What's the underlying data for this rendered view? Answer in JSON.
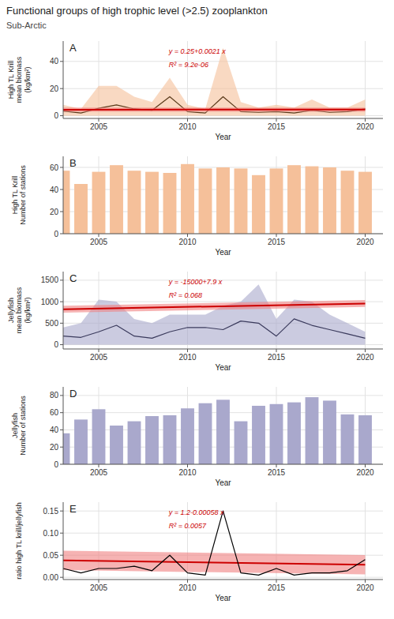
{
  "title": "Functional groups of high trophic level (>2.5) zooplankton",
  "subtitle": "Sub-Arctic",
  "chart_data": [
    {
      "type": "line",
      "x": [
        2003,
        2004,
        2005,
        2006,
        2007,
        2008,
        2009,
        2010,
        2011,
        2012,
        2013,
        2014,
        2015,
        2016,
        2017,
        2018,
        2019,
        2020
      ],
      "xlim": [
        2003,
        2021
      ],
      "ylim": [
        -2,
        55
      ],
      "xticks": [
        2005,
        2010,
        2015,
        2020
      ],
      "yticks": [
        0,
        20,
        40
      ],
      "grid": true,
      "xlabel": "Year",
      "ylabel": "High TL Krill\nmean biomass\n(kg/km²)",
      "annotations": [
        {
          "text": "A"
        },
        {
          "text": "y = 0.25+0.0021 x",
          "color": "#CC0000"
        },
        {
          "text": "R² = 9.2e-06",
          "color": "#CC0000"
        }
      ],
      "series": [
        {
          "type": "area",
          "color": "#F5C09A",
          "values": [
            8.0,
            5.0,
            22.0,
            22.0,
            14.0,
            10.0,
            28.0,
            8.0,
            5.0,
            50.0,
            10.0,
            6.0,
            8.0,
            6.0,
            12.0,
            6.0,
            6.0,
            12.0
          ],
          "lower": [
            0.0,
            0.0,
            0.0,
            0.0,
            0.0,
            0.0,
            0.0,
            0.0,
            0.0,
            0.0,
            0.0,
            0.0,
            0.0,
            0.0,
            0.0,
            0.0,
            0.0,
            0.0
          ]
        },
        {
          "type": "line",
          "color": "#5a3a1a",
          "values": [
            3.5,
            2.0,
            5.5,
            8.0,
            5.0,
            4.0,
            14.0,
            3.0,
            2.0,
            14.0,
            3.0,
            2.5,
            3.0,
            2.0,
            4.0,
            2.5,
            3.0,
            5.0
          ]
        },
        {
          "type": "area",
          "color": "#F08080",
          "x": [
            2003,
            2020
          ],
          "values": [
            5.9563,
            5.992
          ],
          "lower": [
            2.9563,
            2.992
          ]
        },
        {
          "type": "line",
          "color": "#CC0000",
          "x": [
            2003,
            2020
          ],
          "values": [
            4.4563,
            4.492
          ]
        }
      ]
    },
    {
      "type": "bar",
      "x": [
        2003,
        2004,
        2005,
        2006,
        2007,
        2008,
        2009,
        2010,
        2011,
        2012,
        2013,
        2014,
        2015,
        2016,
        2017,
        2018,
        2019,
        2020
      ],
      "values": [
        57,
        45,
        56,
        62,
        57,
        56,
        55,
        63,
        59,
        60,
        59,
        53,
        59,
        62,
        61,
        60,
        57,
        56
      ],
      "color": "#F5C09A",
      "xlim": [
        2003,
        2021
      ],
      "ylim": [
        0,
        70
      ],
      "xticks": [
        2005,
        2010,
        2015,
        2020
      ],
      "yticks": [
        0,
        20,
        40,
        60
      ],
      "grid": true,
      "xlabel": "Year",
      "ylabel": "High TL Krill\nNumber of stations",
      "annotations": [
        {
          "text": "B"
        }
      ]
    },
    {
      "type": "line",
      "x": [
        2003,
        2004,
        2005,
        2006,
        2007,
        2008,
        2009,
        2010,
        2011,
        2012,
        2013,
        2014,
        2015,
        2016,
        2017,
        2018,
        2019,
        2020
      ],
      "xlim": [
        2003,
        2021
      ],
      "ylim": [
        -100,
        1700
      ],
      "xticks": [
        2005,
        2010,
        2015,
        2020
      ],
      "yticks": [
        0,
        500,
        1000,
        1500
      ],
      "grid": true,
      "xlabel": "Year",
      "ylabel": "Jellyfish\nmean biomass\n(kg/km²)",
      "annotations": [
        {
          "text": "C"
        },
        {
          "text": "y = -15000+7.9 x",
          "color": "#CC0000"
        },
        {
          "text": "R² = 0.068",
          "color": "#CC0000"
        }
      ],
      "series": [
        {
          "type": "area",
          "color": "#A9A8CC",
          "values": [
            400,
            500,
            1050,
            1000,
            600,
            500,
            700,
            700,
            700,
            900,
            1000,
            1400,
            600,
            1050,
            1000,
            700,
            500,
            300
          ],
          "lower": [
            0,
            0,
            0,
            0,
            0,
            0,
            0,
            0,
            0,
            0,
            0,
            0,
            0,
            0,
            0,
            0,
            0,
            0
          ]
        },
        {
          "type": "line",
          "color": "#3a3a5c",
          "values": [
            200,
            170,
            300,
            450,
            200,
            150,
            300,
            400,
            400,
            350,
            550,
            500,
            200,
            600,
            450,
            350,
            250,
            150
          ]
        },
        {
          "type": "area",
          "color": "#F08080",
          "x": [
            2003,
            2020
          ],
          "values": [
            903.7,
            1038
          ],
          "lower": [
            743.7,
            878
          ]
        },
        {
          "type": "line",
          "color": "#CC0000",
          "x": [
            2003,
            2020
          ],
          "values": [
            823.7,
            958
          ]
        }
      ]
    },
    {
      "type": "bar",
      "x": [
        2003,
        2004,
        2005,
        2006,
        2007,
        2008,
        2009,
        2010,
        2011,
        2012,
        2013,
        2014,
        2015,
        2016,
        2017,
        2018,
        2019,
        2020
      ],
      "values": [
        36,
        52,
        64,
        45,
        50,
        56,
        57,
        65,
        71,
        75,
        50,
        68,
        70,
        72,
        78,
        74,
        58,
        57
      ],
      "color": "#A9A8CC",
      "xlim": [
        2003,
        2021
      ],
      "ylim": [
        0,
        90
      ],
      "xticks": [
        2005,
        2010,
        2015,
        2020
      ],
      "yticks": [
        0,
        20,
        40,
        60,
        80
      ],
      "grid": true,
      "xlabel": "Year",
      "ylabel": "Jellyfish\nNumber of stations",
      "annotations": [
        {
          "text": "D"
        }
      ]
    },
    {
      "type": "line",
      "x": [
        2003,
        2004,
        2005,
        2006,
        2007,
        2008,
        2009,
        2010,
        2011,
        2012,
        2013,
        2014,
        2015,
        2016,
        2017,
        2018,
        2019,
        2020
      ],
      "xlim": [
        2003,
        2021
      ],
      "ylim": [
        -0.005,
        0.17
      ],
      "xticks": [
        2005,
        2010,
        2015,
        2020
      ],
      "yticks": [
        {
          "value": 0,
          "label": "0.00"
        },
        0.05,
        {
          "value": 0.1,
          "label": "0.10"
        },
        0.15
      ],
      "grid": true,
      "xlabel": "Year",
      "ylabel": "ratio high TL krill/jellyfish",
      "annotations": [
        {
          "text": "E"
        },
        {
          "text": "y = 1.2-0.00058 x",
          "color": "#CC0000"
        },
        {
          "text": "R² = 0.0057",
          "color": "#CC0000"
        }
      ],
      "series": [
        {
          "type": "area",
          "color": "#F08080",
          "x": [
            2003,
            2020
          ],
          "values": [
            0.06026,
            0.0504
          ],
          "lower": [
            0.01626,
            0.0064
          ]
        },
        {
          "type": "line",
          "color": "#CC0000",
          "x": [
            2003,
            2020
          ],
          "values": [
            0.03826,
            0.0284
          ]
        },
        {
          "type": "line",
          "color": "black",
          "values": [
            0.02,
            0.01,
            0.02,
            0.02,
            0.025,
            0.015,
            0.05,
            0.01,
            0.005,
            0.15,
            0.01,
            0.005,
            0.02,
            0.005,
            0.01,
            0.01,
            0.015,
            0.04
          ]
        }
      ]
    }
  ]
}
